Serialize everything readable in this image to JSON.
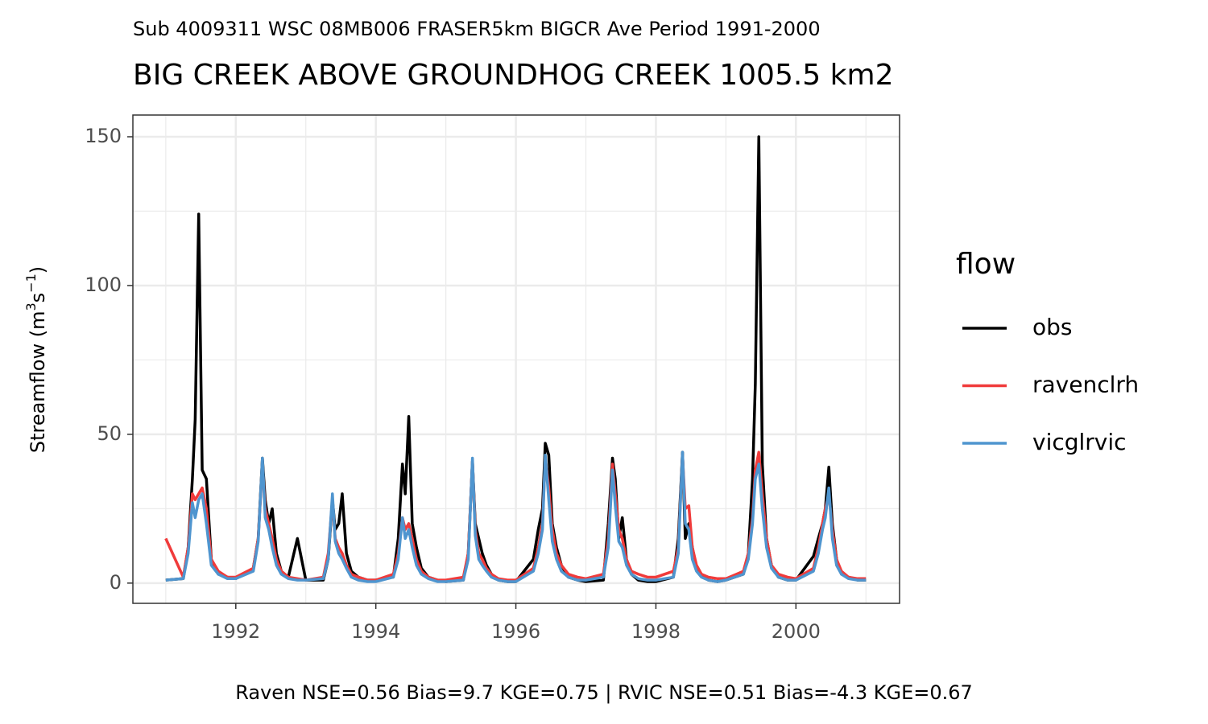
{
  "chart_data": {
    "type": "line",
    "subtitle": "Sub 4009311 WSC 08MB006 FRASER5km BIGCR Ave Period 1991-2000",
    "title": "BIG CREEK ABOVE GROUNDHOG CREEK 1005.5 km2",
    "y_label": [
      "Streamflow (m",
      "3",
      "s",
      "−1",
      ")"
    ],
    "caption": "Raven NSE=0.56 Bias=9.7 KGE=0.75 | RVIC NSE=0.51 Bias=-4.3 KGE=0.67",
    "legend_title": "flow",
    "legend_position": "right",
    "grid": true,
    "xlim": [
      1990.53,
      2001.48
    ],
    "xticks": [
      1992,
      1994,
      1996,
      1998,
      2000
    ],
    "x_minor_ticks": [
      1991,
      1993,
      1995,
      1997,
      1999,
      2001
    ],
    "ylim": [
      -6.8,
      157.3
    ],
    "yticks": [
      0,
      50,
      100,
      150
    ],
    "y_minor_ticks": [
      25,
      75,
      125
    ],
    "x": [
      1991,
      1991.25,
      1991.32,
      1991.38,
      1991.42,
      1991.47,
      1991.52,
      1991.58,
      1991.65,
      1991.75,
      1991.88,
      1992,
      1992.25,
      1992.32,
      1992.38,
      1992.42,
      1992.47,
      1992.52,
      1992.58,
      1992.65,
      1992.75,
      1992.88,
      1993,
      1993.25,
      1993.32,
      1993.38,
      1993.42,
      1993.47,
      1993.52,
      1993.58,
      1993.65,
      1993.75,
      1993.88,
      1994,
      1994.25,
      1994.32,
      1994.38,
      1994.42,
      1994.47,
      1994.52,
      1994.58,
      1994.65,
      1994.75,
      1994.88,
      1995,
      1995.25,
      1995.32,
      1995.38,
      1995.42,
      1995.47,
      1995.52,
      1995.58,
      1995.65,
      1995.75,
      1995.88,
      1996,
      1996.25,
      1996.32,
      1996.38,
      1996.42,
      1996.47,
      1996.52,
      1996.58,
      1996.65,
      1996.75,
      1996.88,
      1997,
      1997.25,
      1997.32,
      1997.38,
      1997.42,
      1997.47,
      1997.52,
      1997.58,
      1997.65,
      1997.75,
      1997.88,
      1998,
      1998.25,
      1998.32,
      1998.38,
      1998.42,
      1998.47,
      1998.52,
      1998.58,
      1998.65,
      1998.75,
      1998.88,
      1999,
      1999.25,
      1999.32,
      1999.38,
      1999.42,
      1999.47,
      1999.52,
      1999.58,
      1999.65,
      1999.75,
      1999.88,
      2000,
      2000.25,
      2000.32,
      2000.38,
      2000.42,
      2000.47,
      2000.52,
      2000.58,
      2000.65,
      2000.75,
      2000.88,
      2001
    ],
    "series": [
      {
        "name": "obs",
        "color": "#000000",
        "values": [
          1,
          1.5,
          12,
          35,
          55,
          124,
          38,
          35,
          8,
          3,
          2,
          1.5,
          5,
          15,
          42,
          28,
          20,
          25,
          10,
          4,
          2,
          15,
          1,
          1,
          8,
          28,
          18,
          20,
          30,
          10,
          4,
          2,
          1,
          1,
          2,
          15,
          40,
          30,
          56,
          20,
          12,
          5,
          2,
          1,
          0.5,
          1,
          10,
          41,
          20,
          15,
          10,
          6,
          3,
          1,
          0.5,
          0.5,
          8,
          18,
          25,
          47,
          43,
          20,
          12,
          6,
          2,
          1,
          0.5,
          1,
          20,
          42,
          35,
          15,
          22,
          8,
          3,
          1,
          0.5,
          0.5,
          2,
          15,
          44,
          15,
          20,
          12,
          5,
          3,
          1,
          0.5,
          1,
          3,
          10,
          35,
          67,
          150,
          40,
          15,
          6,
          2,
          1,
          1,
          9,
          15,
          20,
          25,
          39,
          20,
          8,
          3,
          2,
          1,
          1
        ]
      },
      {
        "name": "ravenclrh",
        "color": "#f03b3b",
        "values": [
          15,
          2,
          12,
          30,
          28,
          30,
          32,
          25,
          8,
          4,
          2,
          2,
          5,
          15,
          40,
          25,
          20,
          15,
          8,
          4,
          2,
          1.5,
          1,
          2,
          10,
          28,
          15,
          12,
          10,
          6,
          3,
          2,
          1,
          1,
          3,
          10,
          22,
          18,
          20,
          15,
          8,
          4,
          2,
          1,
          1,
          2,
          10,
          41,
          18,
          10,
          8,
          5,
          3,
          1.5,
          1,
          1,
          5,
          12,
          20,
          42,
          32,
          18,
          10,
          6,
          3,
          2,
          1.5,
          3,
          15,
          40,
          30,
          18,
          15,
          8,
          4,
          3,
          2,
          2,
          4,
          12,
          43,
          25,
          26,
          12,
          6,
          3,
          2,
          1.5,
          1.5,
          4,
          10,
          22,
          38,
          44,
          30,
          15,
          6,
          3,
          2,
          1.5,
          5,
          12,
          20,
          25,
          30,
          18,
          8,
          4,
          2,
          1.5,
          1.5
        ]
      },
      {
        "name": "vicglrvic",
        "color": "#4f95cf",
        "values": [
          1,
          1.5,
          10,
          27,
          22,
          28,
          30,
          20,
          6,
          3,
          1.5,
          1.5,
          4,
          14,
          42,
          22,
          18,
          12,
          6,
          3,
          1.5,
          1,
          1,
          1.5,
          8,
          30,
          14,
          10,
          8,
          5,
          2,
          1,
          0.5,
          0.5,
          2,
          8,
          22,
          15,
          18,
          12,
          6,
          3,
          1.5,
          0.5,
          0.5,
          1,
          8,
          42,
          16,
          8,
          6,
          4,
          2,
          1,
          0.5,
          0.5,
          4,
          10,
          18,
          43,
          28,
          14,
          8,
          4,
          2,
          1,
          1,
          2,
          12,
          38,
          26,
          14,
          12,
          6,
          3,
          1.5,
          1,
          1,
          2,
          10,
          44,
          20,
          18,
          8,
          4,
          2,
          1,
          0.5,
          1,
          3,
          8,
          20,
          35,
          40,
          25,
          12,
          5,
          2,
          1,
          1,
          4,
          10,
          18,
          22,
          32,
          15,
          6,
          3,
          1.5,
          1,
          1
        ]
      }
    ]
  }
}
